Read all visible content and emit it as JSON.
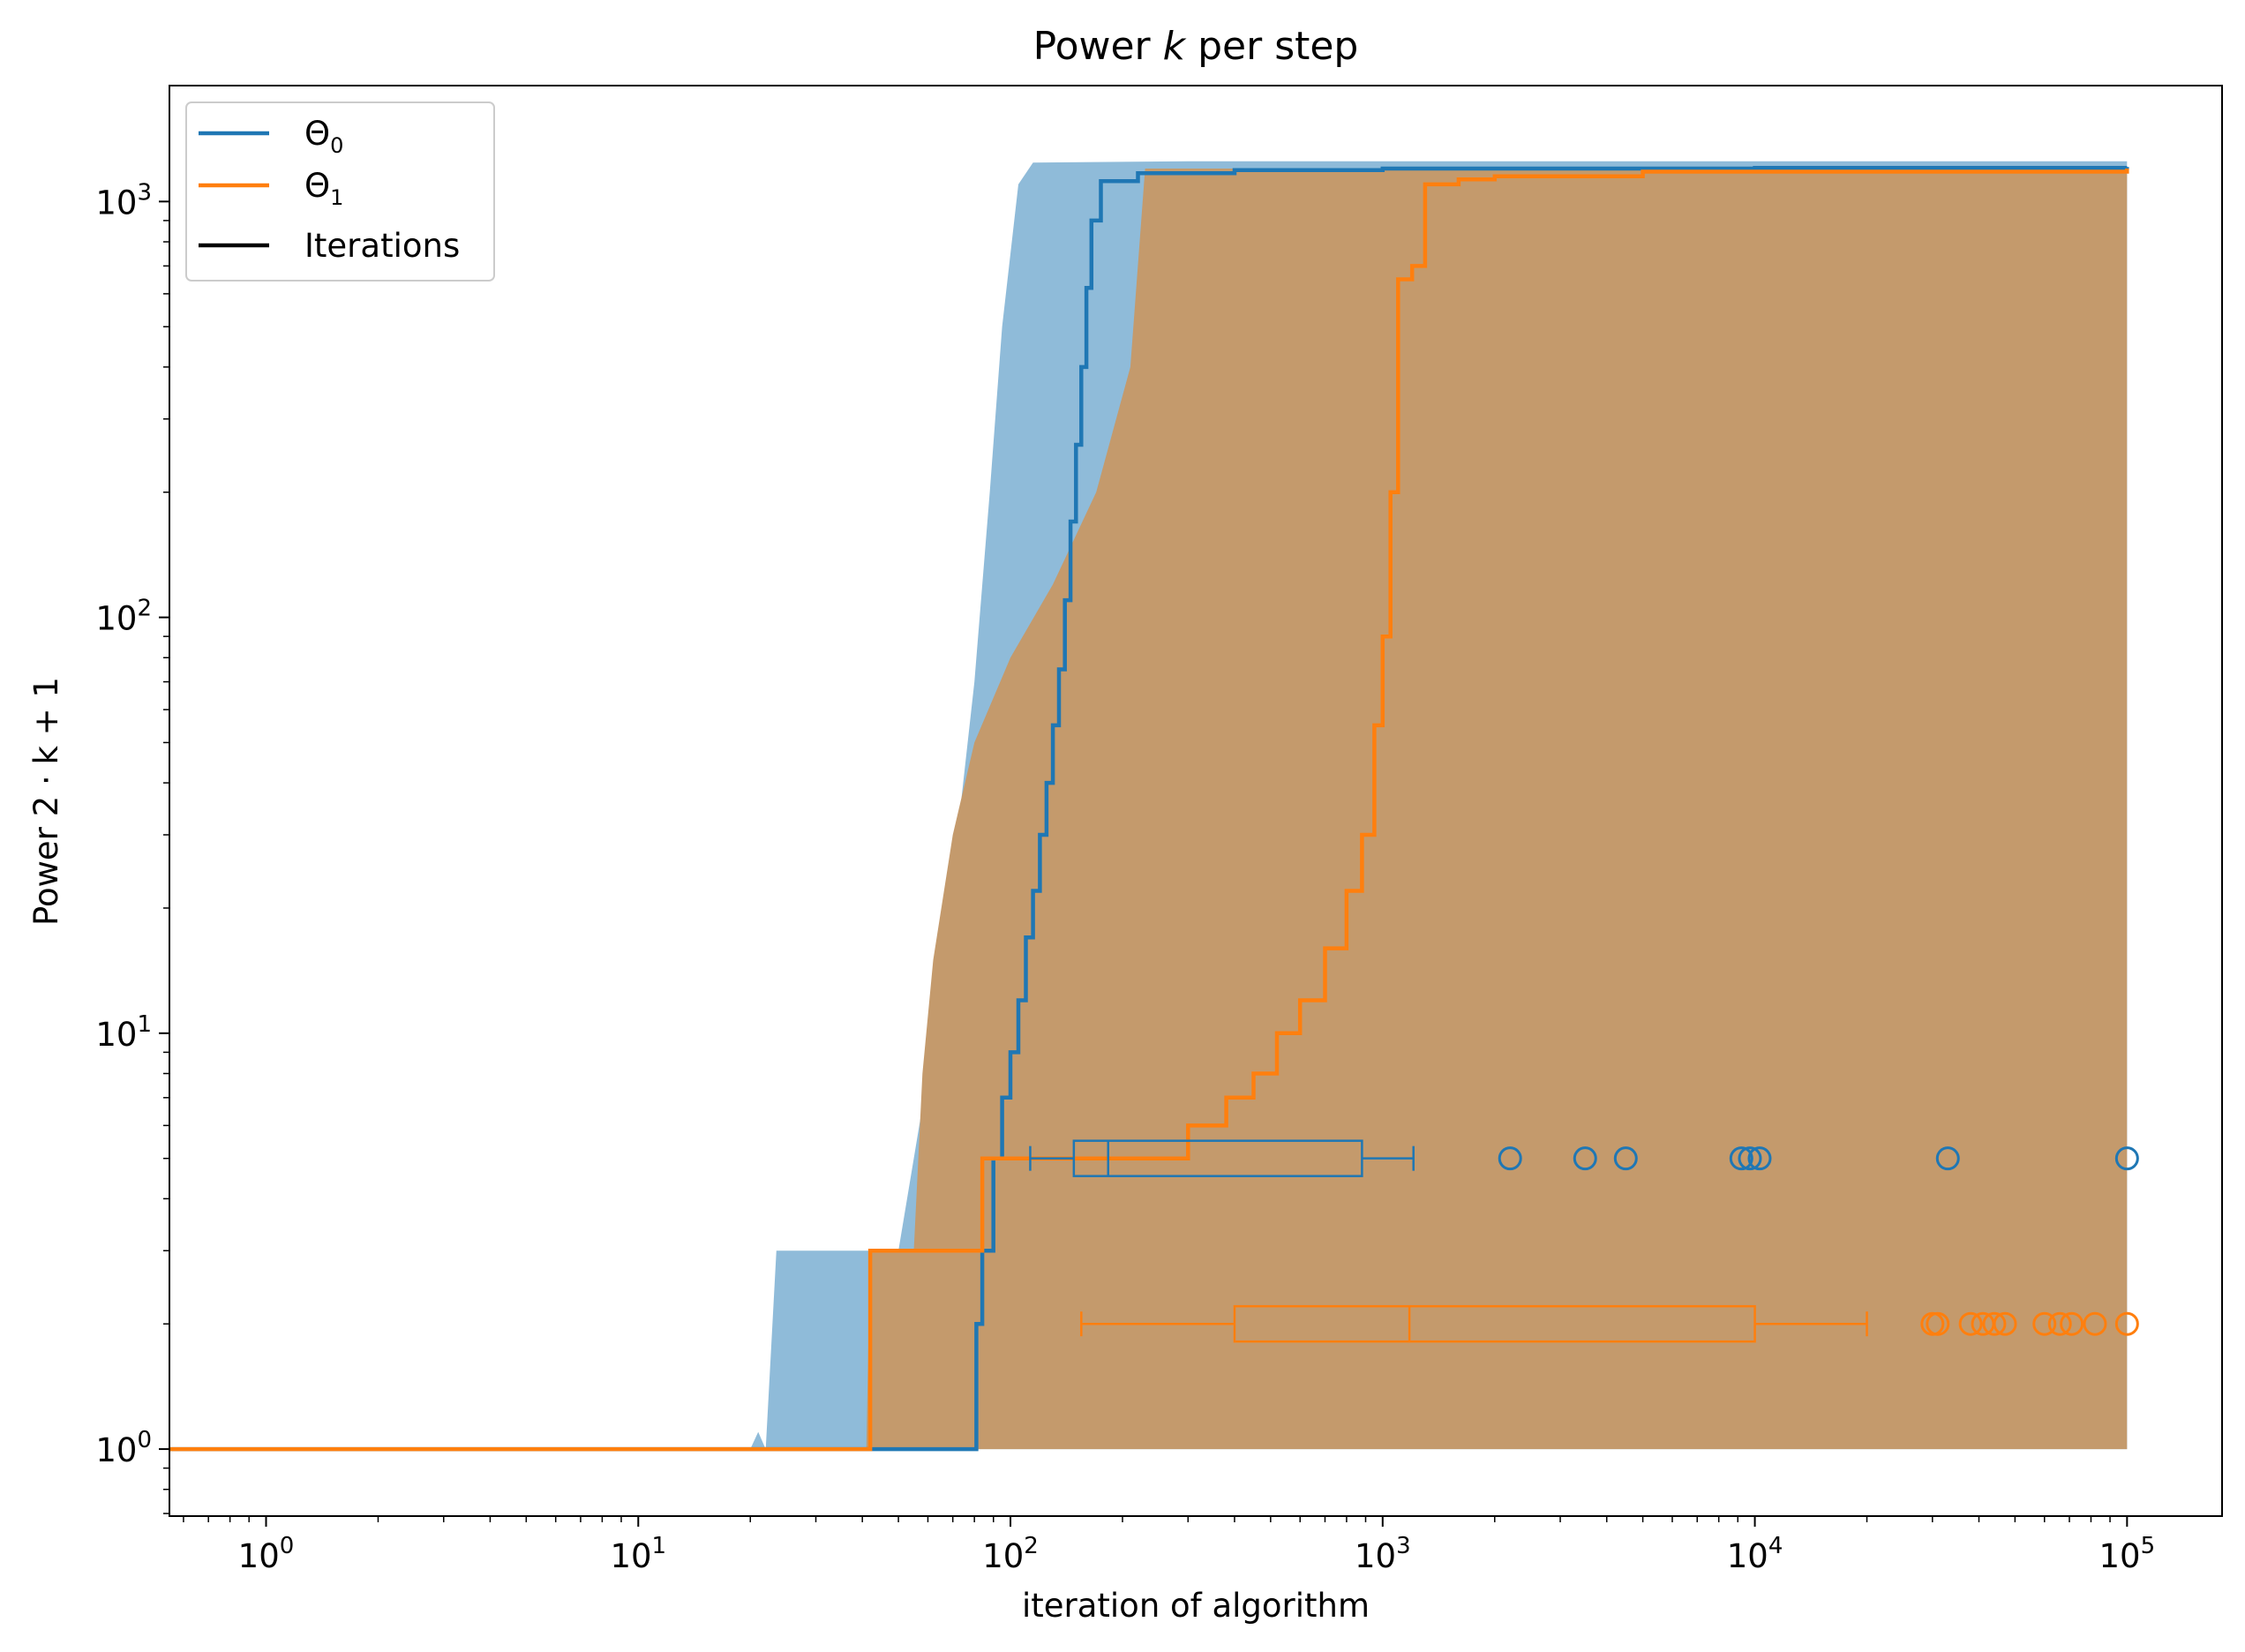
{
  "chart_data": {
    "type": "line",
    "title": "Power k per step",
    "title_parts": {
      "before": "Power ",
      "italic": "k",
      "after": " per step"
    },
    "xlabel": "iteration of algorithm",
    "ylabel": "Power 2 · k + 1",
    "x_scale": "log",
    "y_scale": "log",
    "xlim": [
      0.55,
      180000
    ],
    "ylim": [
      0.69,
      1900
    ],
    "grid": false,
    "legend_position": "top-left",
    "x_ticks": [
      {
        "value": 1,
        "base": "10",
        "exp": "0"
      },
      {
        "value": 10,
        "base": "10",
        "exp": "1"
      },
      {
        "value": 100,
        "base": "10",
        "exp": "2"
      },
      {
        "value": 1000,
        "base": "10",
        "exp": "3"
      },
      {
        "value": 10000,
        "base": "10",
        "exp": "4"
      },
      {
        "value": 100000,
        "base": "10",
        "exp": "5"
      }
    ],
    "y_ticks": [
      {
        "value": 1,
        "base": "10",
        "exp": "0"
      },
      {
        "value": 10,
        "base": "10",
        "exp": "1"
      },
      {
        "value": 100,
        "base": "10",
        "exp": "2"
      },
      {
        "value": 1000,
        "base": "10",
        "exp": "3"
      }
    ],
    "legend": [
      {
        "label": "Θ",
        "sub": "0",
        "color": "#1f77b4"
      },
      {
        "label": "Θ",
        "sub": "1",
        "color": "#ff7f0e"
      },
      {
        "label": "Iterations",
        "sub": "",
        "color": "#000000"
      }
    ],
    "series": [
      {
        "name": "Θ0",
        "color": "#1f77b4",
        "fill_color": "#1f77b4",
        "median": [
          [
            0.55,
            1
          ],
          [
            80,
            1
          ],
          [
            81,
            2
          ],
          [
            84,
            3
          ],
          [
            88,
            3
          ],
          [
            90,
            5
          ],
          [
            95,
            7
          ],
          [
            100,
            9
          ],
          [
            105,
            12
          ],
          [
            110,
            17
          ],
          [
            115,
            22
          ],
          [
            120,
            30
          ],
          [
            125,
            40
          ],
          [
            130,
            55
          ],
          [
            135,
            75
          ],
          [
            140,
            110
          ],
          [
            145,
            170
          ],
          [
            150,
            260
          ],
          [
            155,
            400
          ],
          [
            160,
            620
          ],
          [
            165,
            900
          ],
          [
            175,
            1120
          ],
          [
            220,
            1170
          ],
          [
            400,
            1190
          ],
          [
            1000,
            1200
          ],
          [
            10000,
            1205
          ],
          [
            100000,
            1210
          ]
        ],
        "band_upper": [
          [
            0.55,
            1
          ],
          [
            20,
            1
          ],
          [
            21,
            1.1
          ],
          [
            22,
            1
          ],
          [
            23.5,
            3
          ],
          [
            50,
            3
          ],
          [
            55,
            5
          ],
          [
            60,
            8
          ],
          [
            66,
            15
          ],
          [
            72,
            30
          ],
          [
            80,
            70
          ],
          [
            88,
            200
          ],
          [
            95,
            500
          ],
          [
            105,
            1100
          ],
          [
            115,
            1240
          ],
          [
            300,
            1250
          ],
          [
            100000,
            1250
          ]
        ],
        "band_lower": [
          [
            0.55,
            1
          ],
          [
            100000,
            1
          ]
        ],
        "box": {
          "y": 5,
          "whisker_low": 113,
          "q1": 148,
          "median": 183,
          "q3": 880,
          "whisker_high": 1210
        },
        "outliers": [
          2200,
          3500,
          4500,
          9200,
          9700,
          10300,
          33000,
          100000
        ]
      },
      {
        "name": "Θ1",
        "color": "#ff7f0e",
        "fill_color": "#c49a6c",
        "median": [
          [
            0.55,
            1
          ],
          [
            41,
            1
          ],
          [
            42,
            3
          ],
          [
            80,
            3
          ],
          [
            84,
            5
          ],
          [
            130,
            5
          ],
          [
            140,
            5
          ],
          [
            150,
            5
          ],
          [
            250,
            5
          ],
          [
            300,
            6
          ],
          [
            380,
            7
          ],
          [
            450,
            8
          ],
          [
            520,
            10
          ],
          [
            600,
            12
          ],
          [
            700,
            16
          ],
          [
            800,
            22
          ],
          [
            880,
            30
          ],
          [
            950,
            55
          ],
          [
            1000,
            90
          ],
          [
            1050,
            200
          ],
          [
            1100,
            650
          ],
          [
            1200,
            700
          ],
          [
            1300,
            1100
          ],
          [
            1600,
            1130
          ],
          [
            2000,
            1150
          ],
          [
            5000,
            1180
          ],
          [
            100000,
            1200
          ]
        ],
        "band_upper": [
          [
            0.55,
            1
          ],
          [
            41,
            1
          ],
          [
            42,
            3
          ],
          [
            55,
            3
          ],
          [
            58,
            8
          ],
          [
            62,
            15
          ],
          [
            70,
            30
          ],
          [
            80,
            50
          ],
          [
            100,
            80
          ],
          [
            130,
            120
          ],
          [
            170,
            200
          ],
          [
            210,
            400
          ],
          [
            230,
            1200
          ],
          [
            100000,
            1200
          ]
        ],
        "band_lower": [
          [
            0.55,
            1
          ],
          [
            100000,
            1
          ]
        ],
        "box": {
          "y": 2,
          "whisker_low": 155,
          "q1": 400,
          "median": 1180,
          "q3": 10000,
          "whisker_high": 20000
        },
        "outliers": [
          30000,
          31000,
          38000,
          41000,
          44000,
          47000,
          60000,
          66000,
          71000,
          82000,
          100000
        ]
      }
    ]
  }
}
